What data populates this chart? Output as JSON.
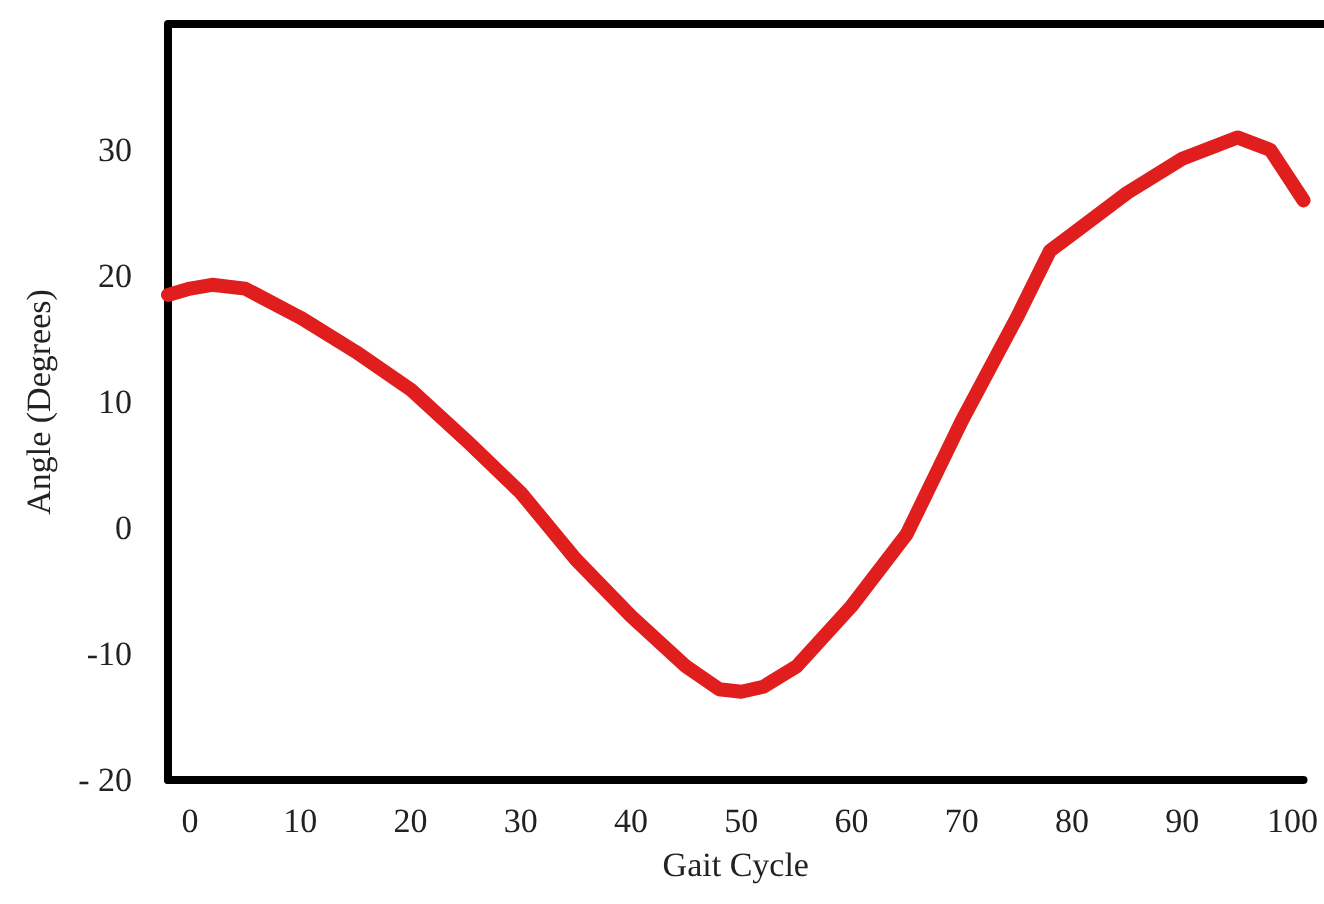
{
  "chart_data": {
    "type": "line",
    "xlabel": "Gait Cycle",
    "ylabel": "Angle (Degrees)",
    "xlim": [
      -2,
      101
    ],
    "xticks": [
      0,
      10,
      20,
      30,
      40,
      50,
      60,
      70,
      80,
      90,
      100
    ],
    "ylim": [
      -20,
      40
    ],
    "yticks": [
      {
        "value": -20,
        "label": "- 20"
      },
      -10,
      0,
      10,
      20,
      30
    ],
    "grid": false,
    "line_style": "solid",
    "series": [
      {
        "color": "#e01e1e",
        "x": [
          -2,
          0,
          2,
          5,
          10,
          15,
          20,
          25,
          30,
          35,
          40,
          45,
          48,
          50,
          52,
          55,
          60,
          65,
          70,
          75,
          78,
          80,
          85,
          90,
          95,
          98,
          101
        ],
        "values": [
          18.5,
          19,
          19.3,
          19,
          16.7,
          14,
          11,
          7,
          2.8,
          -2.5,
          -7,
          -11,
          -12.8,
          -13,
          -12.6,
          -11,
          -6.2,
          -0.5,
          8.5,
          16.7,
          22,
          23.3,
          26.6,
          29.3,
          31,
          30,
          26
        ]
      }
    ]
  }
}
